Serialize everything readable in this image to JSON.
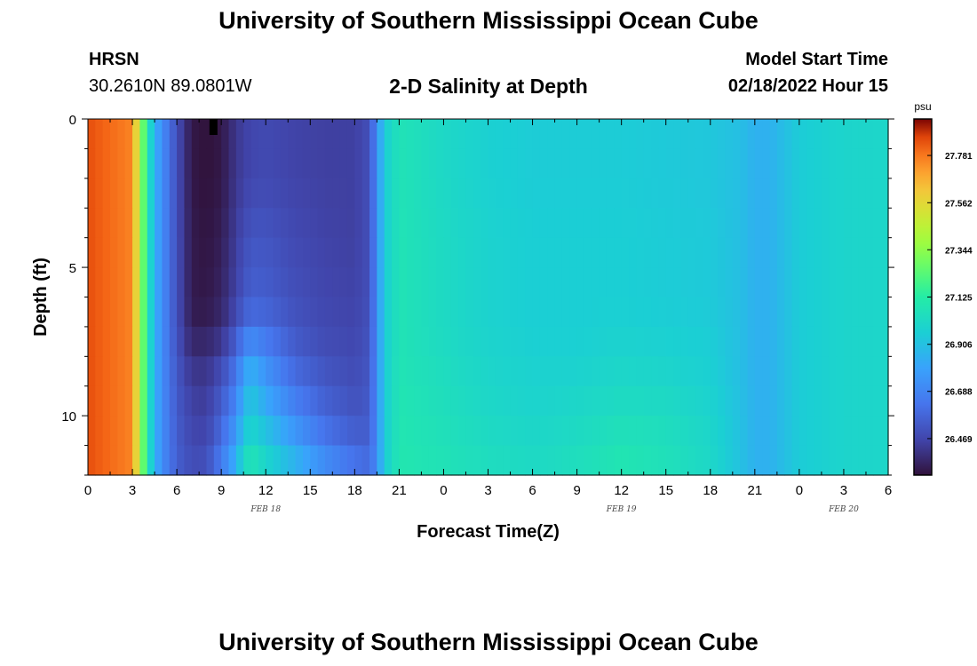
{
  "header": {
    "title": "University of Southern Mississippi Ocean Cube",
    "station_name": "HRSN",
    "station_coords": "30.2610N  89.0801W",
    "subtitle": "2-D Salinity at Depth",
    "model_start_label": "Model Start Time",
    "model_start_value": "02/18/2022 Hour 15"
  },
  "footer": {
    "title": "University of Southern Mississippi Ocean Cube"
  },
  "chart_data": {
    "type": "heatmap",
    "xlabel": "Forecast Time(Z)",
    "ylabel": "Depth (ft)",
    "x_ticks": [
      "0",
      "3",
      "6",
      "9",
      "12",
      "15",
      "18",
      "21",
      "0",
      "3",
      "6",
      "9",
      "12",
      "15",
      "18",
      "21",
      "0",
      "3",
      "6"
    ],
    "day_labels": [
      {
        "label": "FEB 18",
        "hour": 12
      },
      {
        "label": "FEB 19",
        "hour": 36
      },
      {
        "label": "FEB 20",
        "hour": 51
      }
    ],
    "x_range_hours": [
      0,
      54
    ],
    "y_ticks": [
      0,
      5,
      10
    ],
    "y_range_ft": [
      0,
      12
    ],
    "colorbar": {
      "unit": "psu",
      "labels": [
        "27.781",
        "27.562",
        "27.344",
        "27.125",
        "26.906",
        "26.688",
        "26.469"
      ],
      "range": [
        26.3,
        27.95
      ]
    },
    "depths_ft": [
      0,
      2,
      4,
      6,
      7,
      8,
      9,
      10,
      11,
      12
    ],
    "hours": [
      0,
      3,
      3.5,
      4,
      4.5,
      5,
      6,
      7,
      8,
      9,
      10,
      10.5,
      11,
      12,
      14,
      16,
      18,
      19,
      19.5,
      20,
      21,
      24,
      27,
      30,
      33,
      36,
      39,
      42,
      44,
      45,
      46,
      48,
      51,
      54
    ],
    "salinity_rows": [
      [
        27.85,
        27.76,
        27.4,
        27.1,
        26.85,
        26.72,
        26.5,
        26.32,
        26.3,
        26.32,
        26.42,
        26.45,
        26.47,
        26.48,
        26.46,
        26.45,
        26.45,
        26.5,
        26.72,
        26.95,
        27.07,
        27.01,
        26.97,
        26.95,
        26.95,
        26.95,
        26.94,
        26.93,
        26.9,
        26.85,
        26.85,
        26.95,
        26.99,
        27.0
      ],
      [
        27.85,
        27.76,
        27.4,
        27.1,
        26.85,
        26.72,
        26.5,
        26.32,
        26.3,
        26.32,
        26.42,
        26.45,
        26.47,
        26.48,
        26.46,
        26.45,
        26.45,
        26.5,
        26.72,
        26.95,
        27.07,
        27.01,
        26.97,
        26.95,
        26.95,
        26.95,
        26.94,
        26.93,
        26.9,
        26.85,
        26.85,
        26.95,
        26.99,
        27.0
      ],
      [
        27.85,
        27.76,
        27.4,
        27.1,
        26.85,
        26.72,
        26.5,
        26.33,
        26.31,
        26.34,
        26.44,
        26.49,
        26.52,
        26.52,
        26.48,
        26.46,
        26.45,
        26.5,
        26.72,
        26.95,
        27.07,
        27.02,
        26.98,
        26.96,
        26.96,
        26.96,
        26.95,
        26.94,
        26.9,
        26.85,
        26.85,
        26.95,
        26.99,
        27.0
      ],
      [
        27.85,
        27.76,
        27.4,
        27.1,
        26.85,
        26.72,
        26.5,
        26.33,
        26.32,
        26.36,
        26.46,
        26.52,
        26.56,
        26.55,
        26.5,
        26.47,
        26.46,
        26.5,
        26.72,
        26.95,
        27.07,
        27.02,
        26.98,
        26.96,
        26.96,
        26.96,
        26.95,
        26.94,
        26.9,
        26.85,
        26.85,
        26.95,
        26.99,
        27.0
      ],
      [
        27.85,
        27.76,
        27.4,
        27.1,
        26.85,
        26.72,
        26.5,
        26.34,
        26.34,
        26.38,
        26.5,
        26.58,
        26.62,
        26.6,
        26.52,
        26.48,
        26.47,
        26.51,
        26.72,
        26.95,
        27.07,
        27.02,
        26.98,
        26.96,
        26.96,
        26.97,
        26.96,
        26.95,
        26.9,
        26.85,
        26.85,
        26.95,
        26.99,
        27.0
      ],
      [
        27.85,
        27.76,
        27.4,
        27.1,
        26.85,
        26.72,
        26.52,
        26.4,
        26.4,
        26.46,
        26.6,
        26.74,
        26.8,
        26.7,
        26.56,
        26.5,
        26.48,
        26.52,
        26.72,
        26.95,
        27.07,
        27.03,
        26.99,
        26.97,
        26.97,
        26.99,
        26.98,
        26.96,
        26.9,
        26.85,
        26.85,
        26.95,
        26.99,
        27.0
      ],
      [
        27.85,
        27.76,
        27.4,
        27.1,
        26.85,
        26.72,
        26.53,
        26.44,
        26.43,
        26.52,
        26.66,
        26.82,
        26.9,
        26.78,
        26.62,
        26.54,
        26.5,
        26.53,
        26.72,
        26.95,
        27.08,
        27.04,
        27.0,
        26.98,
        26.99,
        27.01,
        27.0,
        26.97,
        26.9,
        26.85,
        26.85,
        26.95,
        26.99,
        27.0
      ],
      [
        27.85,
        27.76,
        27.4,
        27.1,
        26.85,
        26.72,
        26.54,
        26.46,
        26.45,
        26.56,
        26.72,
        26.88,
        26.96,
        26.86,
        26.7,
        26.58,
        26.52,
        26.54,
        26.72,
        26.95,
        27.08,
        27.05,
        27.01,
        26.99,
        27.01,
        27.04,
        27.03,
        26.99,
        26.91,
        26.85,
        26.85,
        26.95,
        26.99,
        27.0
      ],
      [
        27.85,
        27.76,
        27.4,
        27.1,
        26.85,
        26.72,
        26.55,
        26.48,
        26.48,
        26.62,
        26.8,
        26.96,
        27.02,
        26.96,
        26.8,
        26.66,
        26.58,
        26.56,
        26.72,
        26.95,
        27.09,
        27.06,
        27.03,
        27.01,
        27.03,
        27.07,
        27.05,
        27.0,
        26.91,
        26.85,
        26.85,
        26.95,
        26.99,
        27.0
      ],
      [
        27.85,
        27.76,
        27.4,
        27.1,
        26.85,
        26.72,
        26.56,
        26.5,
        26.52,
        26.68,
        26.88,
        27.05,
        27.12,
        27.02,
        26.9,
        26.76,
        26.66,
        26.62,
        26.72,
        26.95,
        27.09,
        27.07,
        27.04,
        27.02,
        27.05,
        27.09,
        27.06,
        27.01,
        26.91,
        26.85,
        26.85,
        26.95,
        26.99,
        27.0
      ]
    ]
  }
}
